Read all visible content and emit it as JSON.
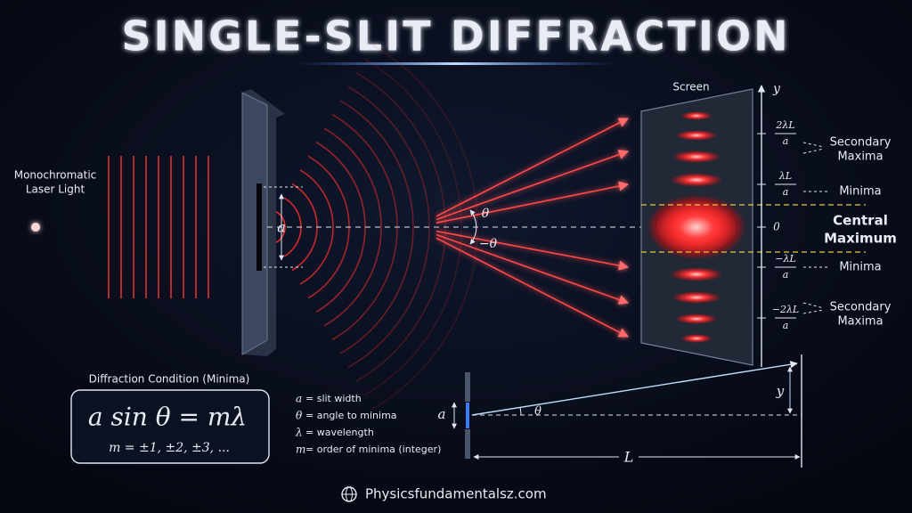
{
  "header": {
    "title": "SINGLE-SLIT DIFFRACTION"
  },
  "source": {
    "label_lines": [
      "Monochromatic",
      "Laser Light"
    ]
  },
  "slit": {
    "width_label": "a"
  },
  "angles": {
    "upper": "θ",
    "lower": "−θ"
  },
  "screen": {
    "label": "Screen",
    "axis_label": "y",
    "ticks": [
      {
        "num": "2λL",
        "den": "a"
      },
      {
        "num": "λL",
        "den": "a"
      },
      {
        "text": "0"
      },
      {
        "num": "−λL",
        "den": "a"
      },
      {
        "num": "−2λL",
        "den": "a"
      }
    ],
    "annotations": [
      {
        "lines": [
          "Secondary",
          "Maxima"
        ]
      },
      {
        "lines": [
          "Minima"
        ]
      },
      {
        "lines": [
          "Central",
          "Maximum"
        ]
      },
      {
        "lines": [
          "Minima"
        ]
      },
      {
        "lines": [
          "Secondary",
          "Maxima"
        ]
      }
    ]
  },
  "condition": {
    "heading": "Diffraction Condition (Minima)",
    "formula": "a sin θ = mλ",
    "orders": "m = ±1, ±2, ±3, ..."
  },
  "legend": [
    {
      "symbol": "a",
      "text": "= slit width"
    },
    {
      "symbol": "θ",
      "text": "= angle to minima"
    },
    {
      "symbol": "λ",
      "text": "= wavelength"
    },
    {
      "symbol": "m",
      "text": "= order of minima (integer)"
    }
  ],
  "geometry": {
    "slit": "a",
    "angle": "θ",
    "offset": "y",
    "distance": "L"
  },
  "footer": {
    "site": "Physicsfundamentalsz.com"
  }
}
